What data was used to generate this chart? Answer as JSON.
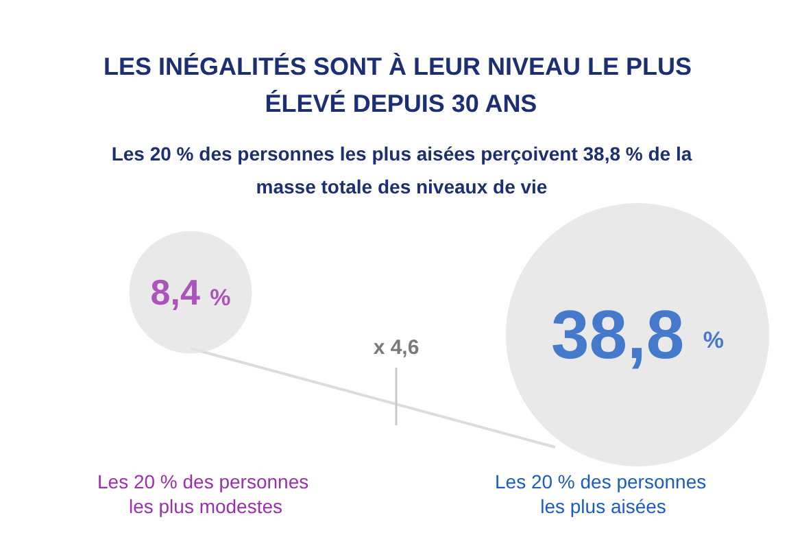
{
  "chart_data": {
    "type": "other",
    "title": "LES INÉGALITÉS SONT À LEUR NIVEAU LE PLUS ÉLEVÉ DEPUIS 30 ANS",
    "subtitle": "Les 20 % des personnes les plus aisées perçoivent 38,8 % de la masse totale des niveaux de vie",
    "categories": [
      "Les 20 % des personnes les plus modestes",
      "Les 20 % des personnes les plus aisées"
    ],
    "values": [
      8.4,
      38.8
    ],
    "value_labels": [
      "8,4 %",
      "38,8 %"
    ],
    "colors": [
      "#e3e3e3",
      "#e3e3e3"
    ],
    "annotations": [
      "x 4,6"
    ]
  }
}
